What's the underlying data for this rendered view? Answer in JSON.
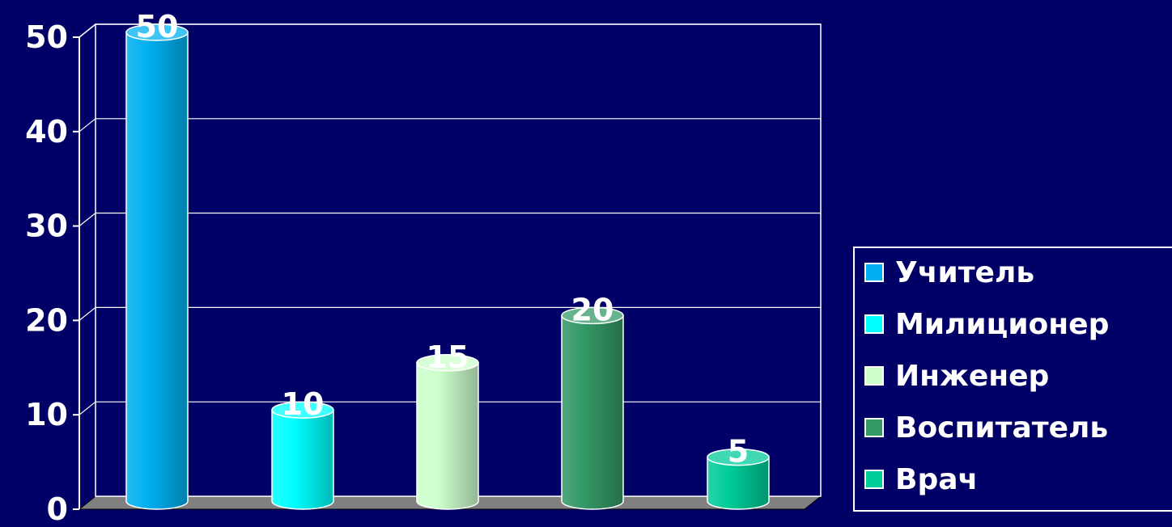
{
  "chart_data": {
    "type": "bar",
    "series": [
      {
        "name": "Учитель",
        "value": 50,
        "color": "#00B0F0"
      },
      {
        "name": "Милиционер",
        "value": 10,
        "color": "#00FFFF"
      },
      {
        "name": "Инженер",
        "value": 15,
        "color": "#CCFFCC"
      },
      {
        "name": "Воспитатель",
        "value": 20,
        "color": "#339966"
      },
      {
        "name": "Врач",
        "value": 5,
        "color": "#00CC99"
      }
    ],
    "ylim": [
      0,
      50
    ],
    "yticks": [
      "0",
      "10",
      "20",
      "30",
      "40",
      "50"
    ],
    "data_labels": [
      "50",
      "10",
      "15",
      "20",
      "5"
    ],
    "grid": true,
    "legend_position": "right"
  }
}
